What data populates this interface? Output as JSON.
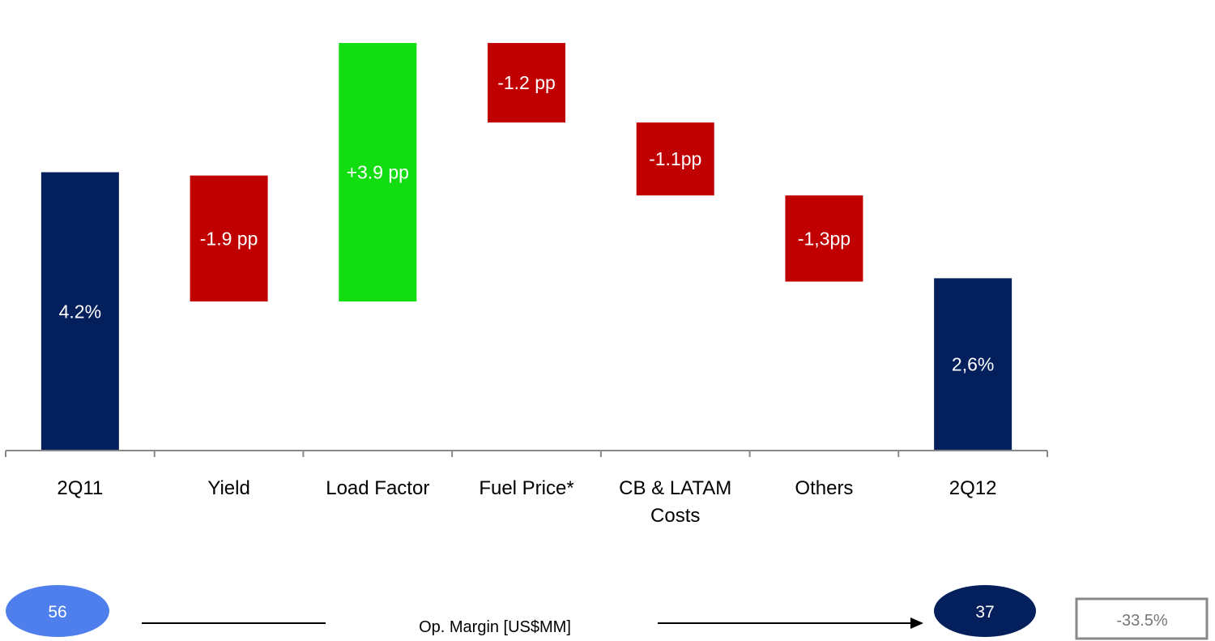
{
  "chart_data": {
    "type": "bar",
    "subtype": "waterfall",
    "title": "",
    "xlabel": "",
    "ylabel": "",
    "ylim": [
      0,
      6.75
    ],
    "grid": false,
    "categories": [
      "2Q11",
      "Yield",
      "Load Factor",
      "Fuel Price*",
      "CB & LATAM Costs",
      "Others",
      "2Q12"
    ],
    "tick_labels": [
      [
        "2Q11"
      ],
      [
        "Yield"
      ],
      [
        "Load Factor"
      ],
      [
        "Fuel Price*"
      ],
      [
        "CB & LATAM",
        "Costs"
      ],
      [
        "Others"
      ],
      [
        "2Q12"
      ]
    ],
    "bars": [
      {
        "category": "2Q11",
        "start": 0,
        "end": 4.2,
        "label": "4.2%",
        "kind": "total"
      },
      {
        "category": "Yield",
        "start": 4.15,
        "end": 2.25,
        "label": "-1.9 pp",
        "kind": "decrease"
      },
      {
        "category": "Load Factor",
        "start": 2.25,
        "end": 6.15,
        "label": "+3.9 pp",
        "kind": "increase"
      },
      {
        "category": "Fuel Price*",
        "start": 6.15,
        "end": 4.95,
        "label": "-1.2 pp",
        "kind": "decrease"
      },
      {
        "category": "CB & LATAM Costs",
        "start": 4.95,
        "end": 3.85,
        "label": "-1.1pp",
        "kind": "decrease"
      },
      {
        "category": "Others",
        "start": 3.85,
        "end": 2.55,
        "label": "-1,3pp",
        "kind": "decrease"
      },
      {
        "category": "2Q12",
        "start": 0,
        "end": 2.6,
        "label": "2,6%",
        "kind": "total"
      }
    ],
    "colors": {
      "total": "#03205c",
      "decrease": "#c00000",
      "increase": "#11dd11"
    }
  },
  "footer": {
    "start_value": "56",
    "label": "Op. Margin [US$MM]",
    "end_value": "37",
    "change": "-33.5%",
    "colors": {
      "start": "#4f7fed",
      "end": "#03205c",
      "box_border": "#888888"
    }
  }
}
